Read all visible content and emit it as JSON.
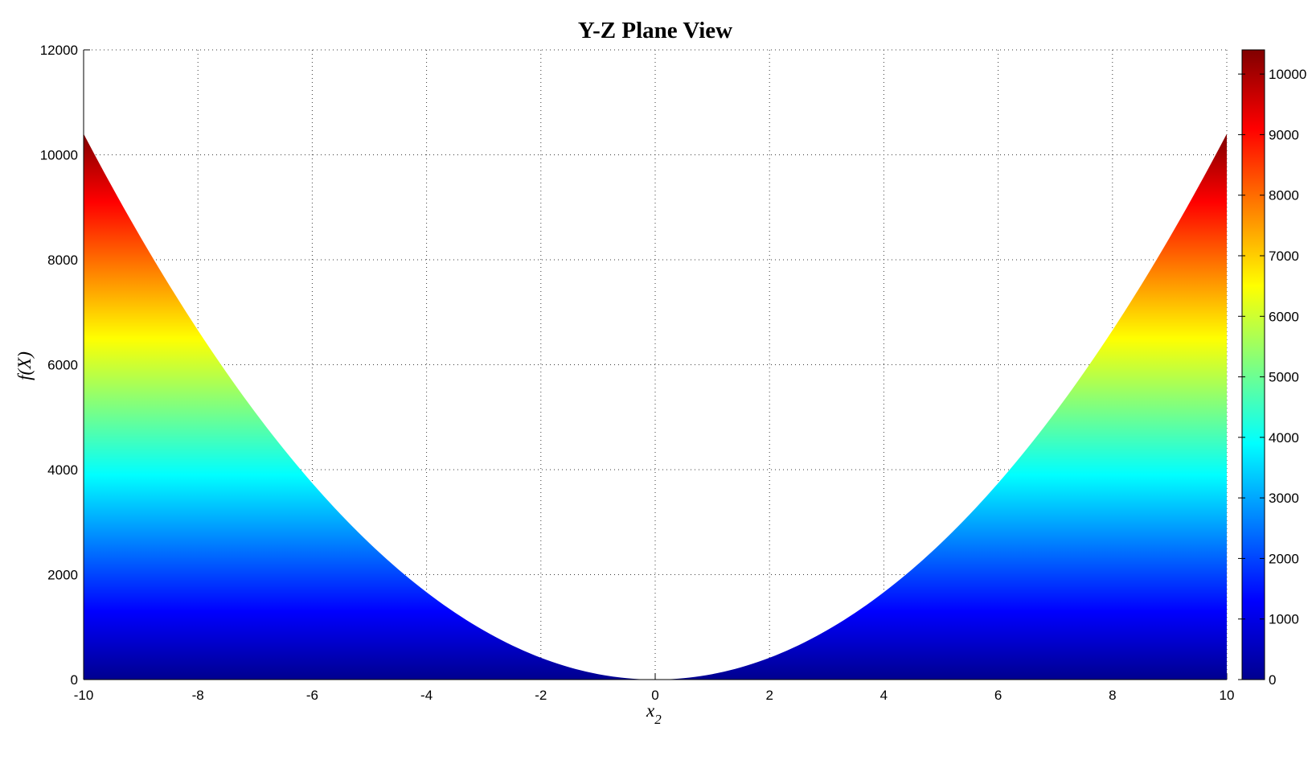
{
  "chart_data": {
    "type": "area",
    "title": "Y-Z Plane View",
    "xlabel": "x",
    "xlabel_subscript": "2",
    "ylabel": "f(X)",
    "xlim": [
      -10,
      10
    ],
    "ylim": [
      0,
      12000
    ],
    "x_ticks": [
      -10,
      -8,
      -6,
      -4,
      -2,
      0,
      2,
      4,
      6,
      8,
      10
    ],
    "y_ticks": [
      0,
      2000,
      4000,
      6000,
      8000,
      10000,
      12000
    ],
    "grid": true,
    "grid_style": "dotted",
    "legend": "none",
    "curve": {
      "description": "Y-Z plane silhouette of quadratic surface, f = 104 * x2^2, filled below curve",
      "coefficient": 104,
      "exponent": 2,
      "x_start": -10,
      "x_end": 10,
      "x_step": 0.1,
      "min_value": 0,
      "peak_value": 10400,
      "sample_x": [
        -10,
        -9,
        -8,
        -7,
        -6,
        -5,
        -4,
        -3,
        -2,
        -1,
        0,
        1,
        2,
        3,
        4,
        5,
        6,
        7,
        8,
        9,
        10
      ],
      "sample_y": [
        10400,
        8424,
        6656,
        5096,
        3744,
        2600,
        1664,
        936,
        416,
        104,
        0,
        104,
        416,
        936,
        1664,
        2600,
        3744,
        5096,
        6656,
        8424,
        10400
      ]
    },
    "colormap": {
      "name": "jet",
      "range": [
        0,
        10400
      ],
      "stops": [
        [
          0,
          "#00008F"
        ],
        [
          0.125,
          "#0000FF"
        ],
        [
          0.375,
          "#00FFFF"
        ],
        [
          0.625,
          "#FFFF00"
        ],
        [
          0.875,
          "#FF0000"
        ],
        [
          1,
          "#800000"
        ]
      ]
    },
    "colorbar": {
      "position": "right",
      "ticks": [
        0,
        1000,
        2000,
        3000,
        4000,
        5000,
        6000,
        7000,
        8000,
        9000,
        10000
      ]
    },
    "axis_color": "#000000",
    "background_color": "#FFFFFF"
  }
}
